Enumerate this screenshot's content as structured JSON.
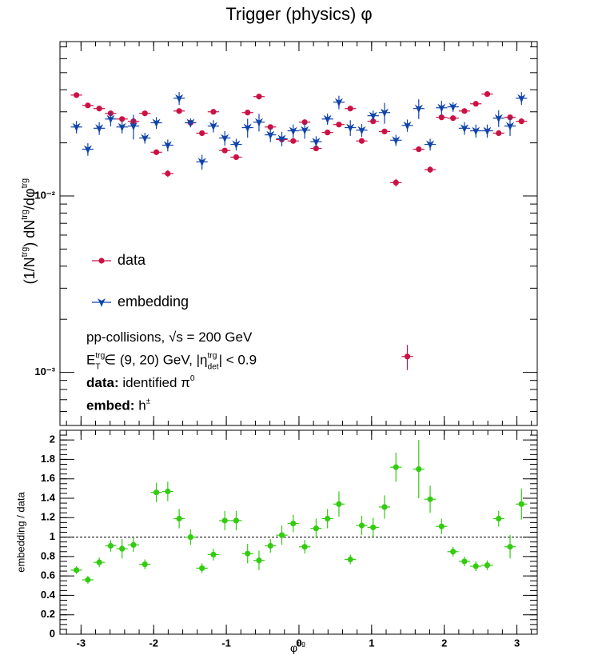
{
  "chart_data": [
    {
      "type": "scatter",
      "title": "Trigger (physics) φ",
      "ylabel_parts": [
        {
          "text": "(1/N"
        },
        {
          "sup": "trg"
        },
        {
          "text": ") dN"
        },
        {
          "sup": "trg"
        },
        {
          "text": "/dφ"
        },
        {
          "sup": "trg"
        }
      ],
      "x": [
        -3.063,
        -2.906,
        -2.749,
        -2.592,
        -2.435,
        -2.278,
        -2.121,
        -1.963,
        -1.806,
        -1.649,
        -1.492,
        -1.335,
        -1.178,
        -1.021,
        -0.864,
        -0.707,
        -0.55,
        -0.393,
        -0.236,
        -0.079,
        0.079,
        0.236,
        0.393,
        0.55,
        0.707,
        0.864,
        1.021,
        1.178,
        1.335,
        1.492,
        1.649,
        1.806,
        1.963,
        2.121,
        2.278,
        2.435,
        2.592,
        2.749,
        2.906,
        3.063
      ],
      "series": [
        {
          "name": "data",
          "color": "#cc1144",
          "marker": "circle",
          "values": [
            0.0373,
            0.0326,
            0.0313,
            0.0294,
            0.0273,
            0.0265,
            0.0294,
            0.0177,
            0.0134,
            0.0303,
            0.026,
            0.0227,
            0.03,
            0.0181,
            0.0166,
            0.0297,
            0.0366,
            0.0246,
            0.0209,
            0.0205,
            0.0262,
            0.0186,
            0.0229,
            0.0254,
            0.0313,
            0.0205,
            0.0265,
            0.0232,
            0.0119,
            0.00123,
            0.0184,
            0.0141,
            0.0279,
            0.0276,
            0.0303,
            0.0333,
            0.0378,
            0.0227,
            0.0279,
            0.0265
          ],
          "errors": [
            0.0006,
            0.0006,
            0.0006,
            0.0006,
            0.0006,
            0.0006,
            0.0006,
            0.0006,
            0.0006,
            0.0006,
            0.0006,
            0.0006,
            0.0006,
            0.0006,
            0.0006,
            0.0006,
            0.0006,
            0.0006,
            0.0006,
            0.0006,
            0.0006,
            0.0006,
            0.0006,
            0.0006,
            0.0006,
            0.0006,
            0.0006,
            0.0006,
            0.0006,
            0.0002,
            0.0006,
            0.0006,
            0.0006,
            0.0006,
            0.0006,
            0.0006,
            0.0006,
            0.0006,
            0.0006,
            0.0006
          ]
        },
        {
          "name": "embedding",
          "color": "#1144aa",
          "marker": "star",
          "values": [
            0.0246,
            0.0184,
            0.0242,
            0.0273,
            0.0246,
            0.0249,
            0.0213,
            0.026,
            0.0194,
            0.0358,
            0.026,
            0.0156,
            0.0249,
            0.0213,
            0.0196,
            0.0244,
            0.0262,
            0.0222,
            0.0211,
            0.0234,
            0.0236,
            0.0203,
            0.0273,
            0.034,
            0.0244,
            0.0236,
            0.0285,
            0.0297,
            0.0207,
            0.0251,
            0.0313,
            0.0196,
            0.0316,
            0.032,
            0.0242,
            0.0234,
            0.0234,
            0.0276,
            0.0249,
            0.0358
          ],
          "errors": [
            0.002,
            0.0015,
            0.002,
            0.0025,
            0.002,
            0.004,
            0.0015,
            0.002,
            0.0015,
            0.003,
            0.0015,
            0.0015,
            0.002,
            0.002,
            0.0015,
            0.003,
            0.003,
            0.002,
            0.002,
            0.002,
            0.0025,
            0.0015,
            0.002,
            0.003,
            0.0025,
            0.002,
            0.002,
            0.004,
            0.0015,
            0.002,
            0.004,
            0.0015,
            0.003,
            0.002,
            0.002,
            0.002,
            0.002,
            0.003,
            0.003,
            0.003
          ]
        }
      ],
      "xlim": [
        -3.29,
        3.28
      ],
      "xticks": [
        -3,
        -2,
        -1,
        0,
        1,
        2,
        3
      ],
      "ylim": [
        0.0005,
        0.075
      ],
      "log_y": true,
      "yticks": [
        {
          "value": 0.001,
          "label": "10⁻³"
        },
        {
          "value": 0.01,
          "label": "10⁻²"
        }
      ],
      "annotations": [
        [
          {
            "text": "pp-collisions, √s = 200 GeV"
          }
        ],
        [
          {
            "text": "E"
          },
          {
            "sub": "T",
            "sup": "trg"
          },
          {
            "text": " ∈ (9, 20) GeV, |η"
          },
          {
            "sub": "det",
            "sup": "trg"
          },
          {
            "text": "| < 0.9"
          }
        ],
        [
          {
            "b": "data:"
          },
          {
            "text": " identified π"
          },
          {
            "sup": "0"
          }
        ],
        [
          {
            "b": "embed:"
          },
          {
            "text": " h"
          },
          {
            "sup": "±"
          }
        ]
      ]
    },
    {
      "type": "scatter",
      "xlabel_parts": [
        {
          "text": "φ"
        },
        {
          "sup": "trg"
        }
      ],
      "ylabel": "embedding / data",
      "x": [
        -3.063,
        -2.906,
        -2.749,
        -2.592,
        -2.435,
        -2.278,
        -2.121,
        -1.963,
        -1.806,
        -1.649,
        -1.492,
        -1.335,
        -1.178,
        -1.021,
        -0.864,
        -0.707,
        -0.55,
        -0.393,
        -0.236,
        -0.079,
        0.079,
        0.236,
        0.393,
        0.55,
        0.707,
        0.864,
        1.021,
        1.178,
        1.335,
        1.492,
        1.649,
        1.806,
        1.963,
        2.121,
        2.278,
        2.435,
        2.592,
        2.749,
        2.906,
        3.063
      ],
      "series": [
        {
          "color": "#33cc11",
          "marker": "circle",
          "values": [
            0.66,
            0.56,
            0.74,
            0.91,
            0.88,
            0.92,
            0.72,
            1.46,
            1.47,
            1.19,
            1.0,
            0.68,
            0.82,
            1.17,
            1.17,
            0.83,
            0.76,
            0.91,
            1.02,
            1.14,
            0.9,
            1.09,
            1.19,
            1.34,
            0.77,
            1.12,
            1.1,
            1.31,
            1.72,
            null,
            1.7,
            1.39,
            1.11,
            0.85,
            0.75,
            0.7,
            0.71,
            1.19,
            0.9,
            1.34
          ],
          "errors": [
            0.04,
            0.04,
            0.05,
            0.06,
            0.1,
            0.07,
            0.05,
            0.1,
            0.1,
            0.1,
            0.08,
            0.05,
            0.06,
            0.1,
            0.1,
            0.1,
            0.1,
            0.07,
            0.1,
            0.09,
            0.07,
            0.1,
            0.1,
            0.13,
            0.05,
            0.1,
            0.1,
            0.12,
            0.15,
            null,
            0.3,
            0.14,
            0.08,
            0.05,
            0.05,
            0.05,
            0.05,
            0.08,
            0.12,
            0.16
          ]
        }
      ],
      "xlim": [
        -3.29,
        3.28
      ],
      "xticks": [
        -3,
        -2,
        -1,
        0,
        1,
        2,
        3
      ],
      "ylim": [
        0,
        2.1
      ],
      "yticks": [
        0,
        0.2,
        0.4,
        0.6,
        0.8,
        1,
        1.2,
        1.4,
        1.6,
        1.8,
        2
      ],
      "ref_line": 1
    }
  ]
}
